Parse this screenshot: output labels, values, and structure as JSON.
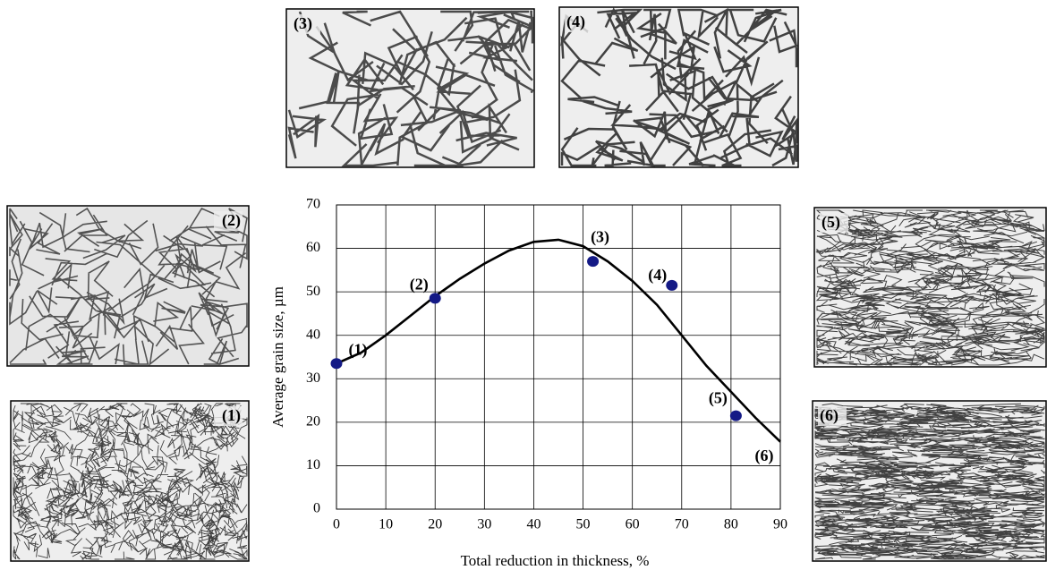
{
  "chart_data": {
    "type": "scatter",
    "x_label": "Total reduction in thickness, %",
    "y_label": "Average grain size, µm",
    "points": {
      "x": [
        0,
        20,
        52,
        68,
        81
      ],
      "values": [
        33.5,
        48.5,
        57,
        51.5,
        21.5
      ],
      "labels": [
        "(1)",
        "(2)",
        "(3)",
        "(4)",
        "(5)"
      ],
      "color": "#141a86"
    },
    "curve": {
      "x": [
        0,
        5,
        10,
        15,
        20,
        25,
        30,
        35,
        40,
        45,
        50,
        55,
        60,
        65,
        70,
        75,
        80,
        85,
        90
      ],
      "values": [
        33.5,
        36,
        40,
        44.5,
        49,
        53,
        56.5,
        59.5,
        61.5,
        62,
        60.5,
        57,
        52.5,
        47,
        40,
        33,
        27,
        21,
        15.5
      ],
      "label": "(6)",
      "color": "#000000"
    },
    "xlim": [
      0,
      90
    ],
    "xticks": [
      0,
      10,
      20,
      30,
      40,
      50,
      60,
      70,
      80,
      90
    ],
    "ylim": [
      0,
      70
    ],
    "yticks": [
      0,
      10,
      20,
      30,
      40,
      50,
      60,
      70
    ],
    "grid": true
  },
  "micrographs": [
    {
      "label": "(1)"
    },
    {
      "label": "(2)"
    },
    {
      "label": "(3)"
    },
    {
      "label": "(4)"
    },
    {
      "label": "(5)"
    },
    {
      "label": "(6)"
    }
  ]
}
